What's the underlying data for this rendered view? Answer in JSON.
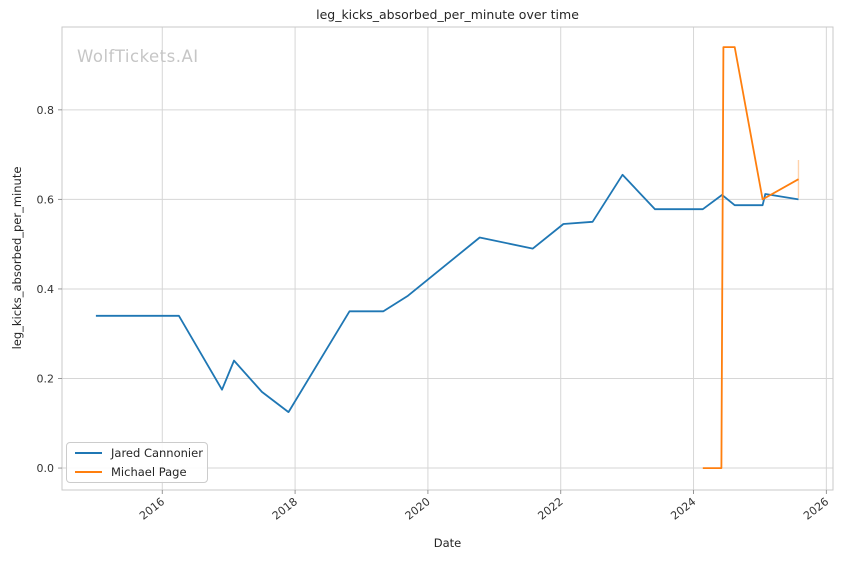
{
  "watermark": "WolfTickets.AI",
  "chart_data": {
    "type": "line",
    "title": "leg_kicks_absorbed_per_minute over time",
    "xlabel": "Date",
    "ylabel": "leg_kicks_absorbed_per_minute",
    "grid": true,
    "legend_position": "lower left",
    "axes": {
      "x_min": 2014.49,
      "x_max": 2026.1,
      "y_min": -0.049,
      "y_max": 0.985,
      "xticks": [
        2016,
        2018,
        2020,
        2022,
        2024,
        2026
      ],
      "yticks": [
        0.0,
        0.2,
        0.4,
        0.6,
        0.8
      ],
      "x_tick_rotation_deg": 38
    },
    "series": [
      {
        "name": "Jared Cannonier",
        "color": "#1f77b4",
        "x": [
          2015.0,
          2016.25,
          2016.9,
          2017.08,
          2017.5,
          2017.9,
          2018.82,
          2019.33,
          2019.7,
          2020.78,
          2021.58,
          2022.04,
          2022.48,
          2022.93,
          2023.42,
          2024.14,
          2024.43,
          2024.62,
          2025.04,
          2025.08,
          2025.58
        ],
        "y": [
          0.34,
          0.34,
          0.175,
          0.24,
          0.17,
          0.125,
          0.35,
          0.35,
          0.385,
          0.515,
          0.49,
          0.545,
          0.55,
          0.655,
          0.578,
          0.578,
          0.61,
          0.587,
          0.587,
          0.612,
          0.6
        ]
      },
      {
        "name": "Michael Page",
        "color": "#ff7f0e",
        "x": [
          2024.14,
          2024.42,
          2024.45,
          2024.62,
          2025.04,
          2025.58
        ],
        "y": [
          0.0,
          0.0,
          0.94,
          0.94,
          0.6,
          0.645
        ]
      }
    ],
    "annotations": [
      {
        "type": "vline_segment",
        "x": 2025.58,
        "y0": 0.603,
        "y1": 0.688,
        "color": "#ff7f0e",
        "opacity": 0.35
      }
    ],
    "style": {
      "grid_color": "#d6d6d6",
      "spine_color": "#c9c9c9",
      "tick_color": "#8c8c8c",
      "tick_label_color": "#333333",
      "line_width": 1.8
    }
  }
}
